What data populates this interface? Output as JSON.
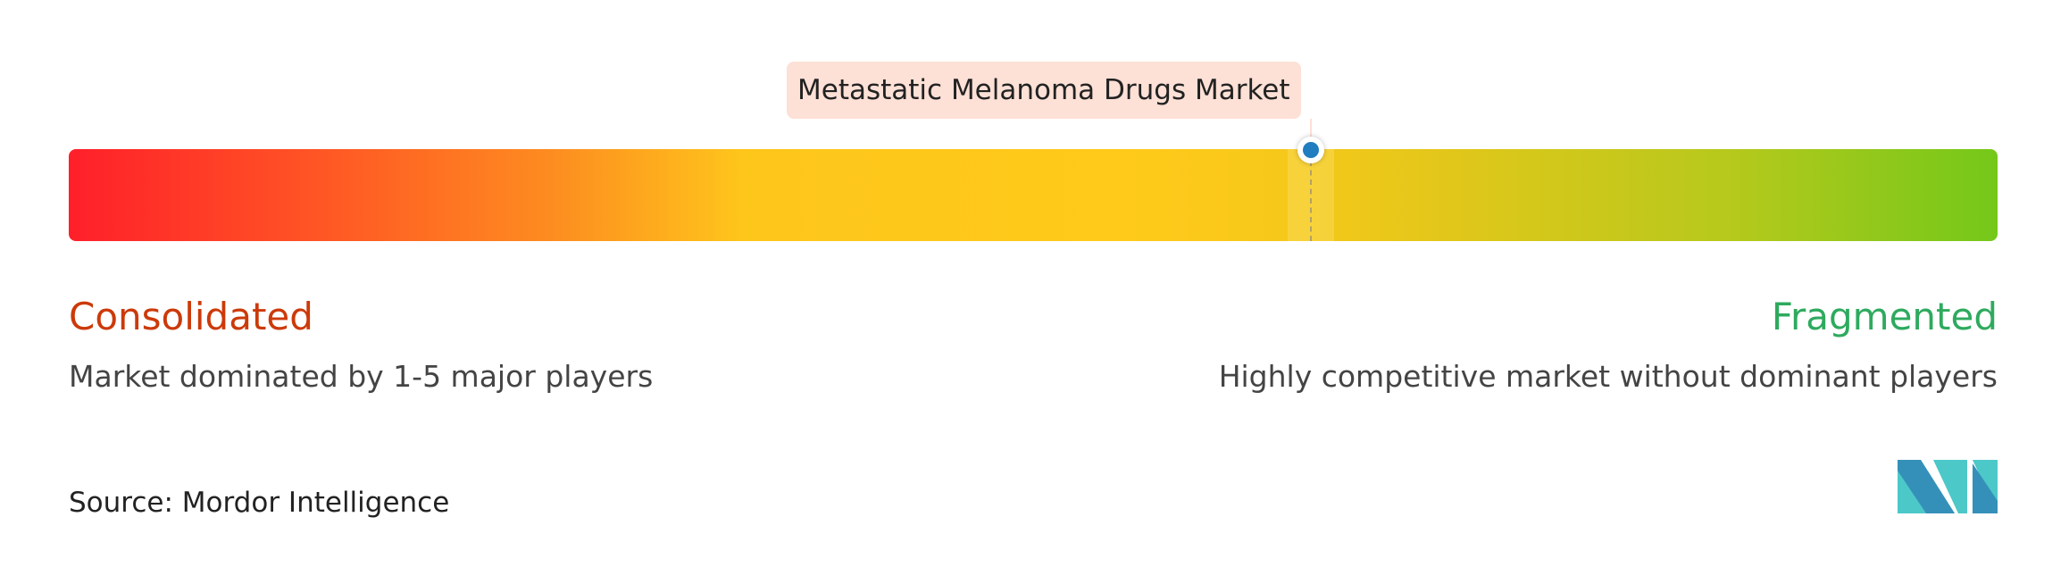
{
  "chart_data": {
    "type": "gradient-scale",
    "marker_label": "Metastatic Melanoma Drugs Market",
    "marker_position": 0.644,
    "left_end": {
      "title": "Consolidated",
      "description": "Market dominated by 1-5 major players",
      "color": "#cc3a0a"
    },
    "right_end": {
      "title": "Fragmented",
      "description": "Highly competitive market without dominant players",
      "color": "#2eaa5e"
    },
    "gradient_colors": [
      "#ff1f2a",
      "#fd8c20",
      "#ffca1a",
      "#74c81a"
    ],
    "marker_color": "#1f7dc0"
  },
  "source": "Source: Mordor Intelligence",
  "logo": {
    "text": "Mordor Intelligence",
    "colors": [
      "#3590b9",
      "#4cc8c8"
    ]
  }
}
